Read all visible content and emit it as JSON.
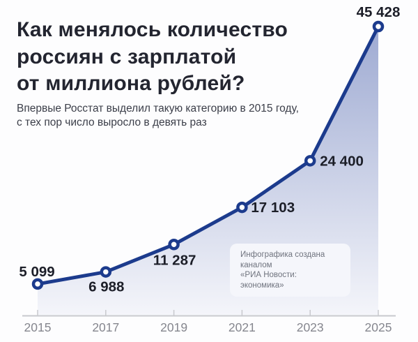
{
  "header": {
    "title_lines": [
      "Как менялось количество",
      "россиян с зарплатой",
      "от миллиона рублей?"
    ],
    "subtitle_lines": [
      "Впервые Росстат выделил такую категорию в 2015 году,",
      "с тех пор число выросло в девять раз"
    ]
  },
  "credit_badge": {
    "line1": "Инфографика создана каналом",
    "line2": "«РИА Новости: экономика»"
  },
  "chart_data": {
    "type": "area",
    "title": "Как менялось количество россиян с зарплатой от миллиона рублей?",
    "subtitle": "Впервые Росстат выделил такую категорию в 2015 году, с тех пор число выросло в девять раз",
    "categories": [
      "2015",
      "2017",
      "2019",
      "2021",
      "2023",
      "2025"
    ],
    "values": [
      5099,
      6988,
      11287,
      17103,
      24400,
      45428
    ],
    "value_labels": [
      "5 099",
      "6 988",
      "11 287",
      "17 103",
      "24 400",
      "45 428"
    ],
    "xlabel": "",
    "ylabel": "",
    "ylim": [
      0,
      45428
    ],
    "grid": false,
    "legend": "none",
    "colors": {
      "line": "#1c3b8d",
      "marker_fill": "#ffffff",
      "area_top": "#9eaad2",
      "area_bottom": "#f4f5fa",
      "value_label": "#1c1e28",
      "axis": "#c8c9ce",
      "year_label": "#85868e",
      "title": "#232530",
      "subtitle": "#3a3d48"
    }
  }
}
